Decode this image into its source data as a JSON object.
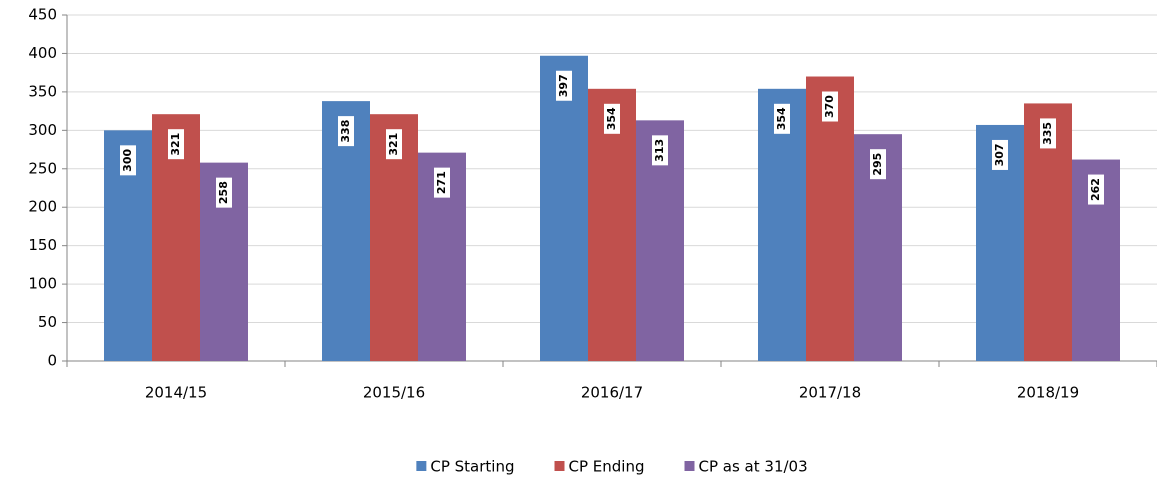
{
  "chart_data": {
    "type": "bar",
    "categories": [
      "2014/15",
      "2015/16",
      "2016/17",
      "2017/18",
      "2018/19"
    ],
    "series": [
      {
        "name": "CP Starting",
        "color": "#4f81bd",
        "values": [
          300,
          338,
          397,
          354,
          307
        ]
      },
      {
        "name": "CP Ending",
        "color": "#c0504d",
        "values": [
          321,
          321,
          354,
          370,
          335
        ]
      },
      {
        "name": "CP as at 31/03",
        "color": "#8064a2",
        "values": [
          258,
          271,
          313,
          295,
          262
        ]
      }
    ],
    "ylim": [
      0,
      450
    ],
    "yticks": [
      0,
      50,
      100,
      150,
      200,
      250,
      300,
      350,
      400,
      450
    ],
    "grid": true,
    "legend": "bottom"
  }
}
